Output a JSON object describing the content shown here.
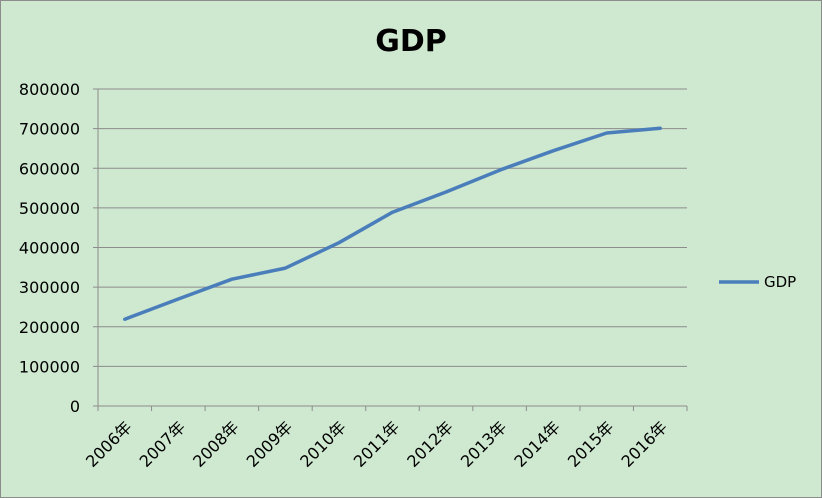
{
  "chart_data": {
    "type": "line",
    "title": "GDP",
    "categories": [
      "2006年",
      "2007年",
      "2008年",
      "2009年",
      "2010年",
      "2011年",
      "2012年",
      "2013年",
      "2014年",
      "2015年",
      "2016年"
    ],
    "series": [
      {
        "name": "GDP",
        "values": [
          219000,
          270000,
          320000,
          348000,
          412000,
          489000,
          540000,
          595000,
          644000,
          689000,
          701000
        ],
        "color": "#4a7ebb"
      }
    ],
    "ylim": [
      0,
      800000
    ],
    "yticks": [
      0,
      100000,
      200000,
      300000,
      400000,
      500000,
      600000,
      700000,
      800000
    ],
    "grid": true,
    "legend_position": "right",
    "background_color": "#cfe8d0",
    "grid_color": "#8c8c8c"
  }
}
